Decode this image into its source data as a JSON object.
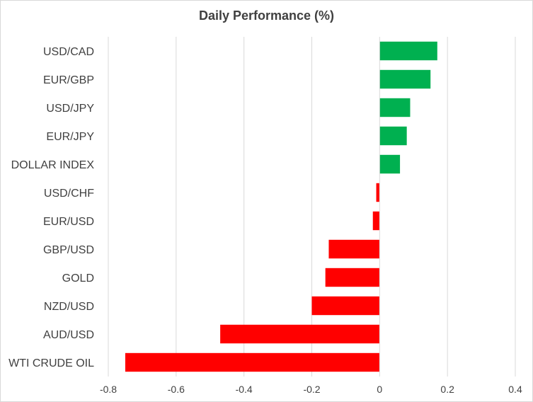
{
  "chart_data": {
    "type": "bar",
    "orientation": "horizontal",
    "title": "Daily Performance (%)",
    "xlabel": "",
    "ylabel": "",
    "categories": [
      "USD/CAD",
      "EUR/GBP",
      "USD/JPY",
      "EUR/JPY",
      "DOLLAR INDEX",
      "USD/CHF",
      "EUR/USD",
      "GBP/USD",
      "GOLD",
      "NZD/USD",
      "AUD/USD",
      "WTI CRUDE OIL"
    ],
    "values": [
      0.17,
      0.15,
      0.09,
      0.08,
      0.06,
      -0.01,
      -0.02,
      -0.15,
      -0.16,
      -0.2,
      -0.47,
      -0.75
    ],
    "xlim": [
      -0.8,
      0.4
    ],
    "xticks": [
      -0.8,
      -0.6,
      -0.4,
      -0.2,
      0,
      0.2,
      0.4
    ],
    "xtick_labels": [
      "-0.8",
      "-0.6",
      "-0.4",
      "-0.2",
      "0",
      "0.2",
      "0.4"
    ],
    "grid": "vertical",
    "legend": "none",
    "colors": {
      "positive": "#00b050",
      "negative": "#ff0000",
      "grid": "#d9d9d9",
      "text": "#404040"
    }
  }
}
